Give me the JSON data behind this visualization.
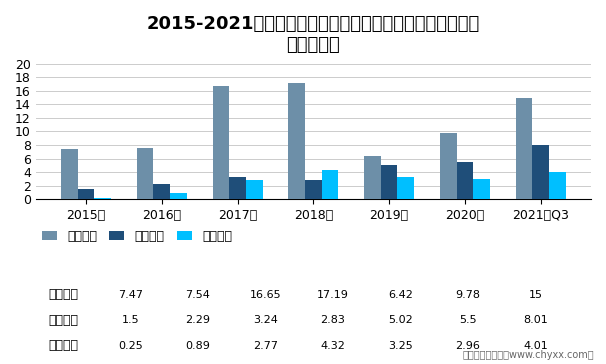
{
  "title": "2015-2021年光纤激光器领域重点企业净利润对比情况（单\n位：亿元）",
  "categories": [
    "2015年",
    "2016年",
    "2017年",
    "2018年",
    "2019年",
    "2020年",
    "2021年Q3"
  ],
  "series": [
    {
      "name": "大族激光",
      "values": [
        7.47,
        7.54,
        16.65,
        17.19,
        6.42,
        9.78,
        15
      ],
      "color": "#6d8fa8"
    },
    {
      "name": "华工科技",
      "values": [
        1.5,
        2.29,
        3.24,
        2.83,
        5.02,
        5.5,
        8.01
      ],
      "color": "#1f4e79"
    },
    {
      "name": "锐科激光",
      "values": [
        0.25,
        0.89,
        2.77,
        4.32,
        3.25,
        2.96,
        4.01
      ],
      "color": "#00bfff"
    }
  ],
  "ylim": [
    0,
    20
  ],
  "yticks": [
    0,
    2,
    4,
    6,
    8,
    10,
    12,
    14,
    16,
    18,
    20
  ],
  "background_color": "#ffffff",
  "grid_color": "#cccccc",
  "title_fontsize": 13,
  "legend_fontsize": 9,
  "tick_fontsize": 9,
  "footer": "制图：智研咨询（www.chyxx.com）"
}
